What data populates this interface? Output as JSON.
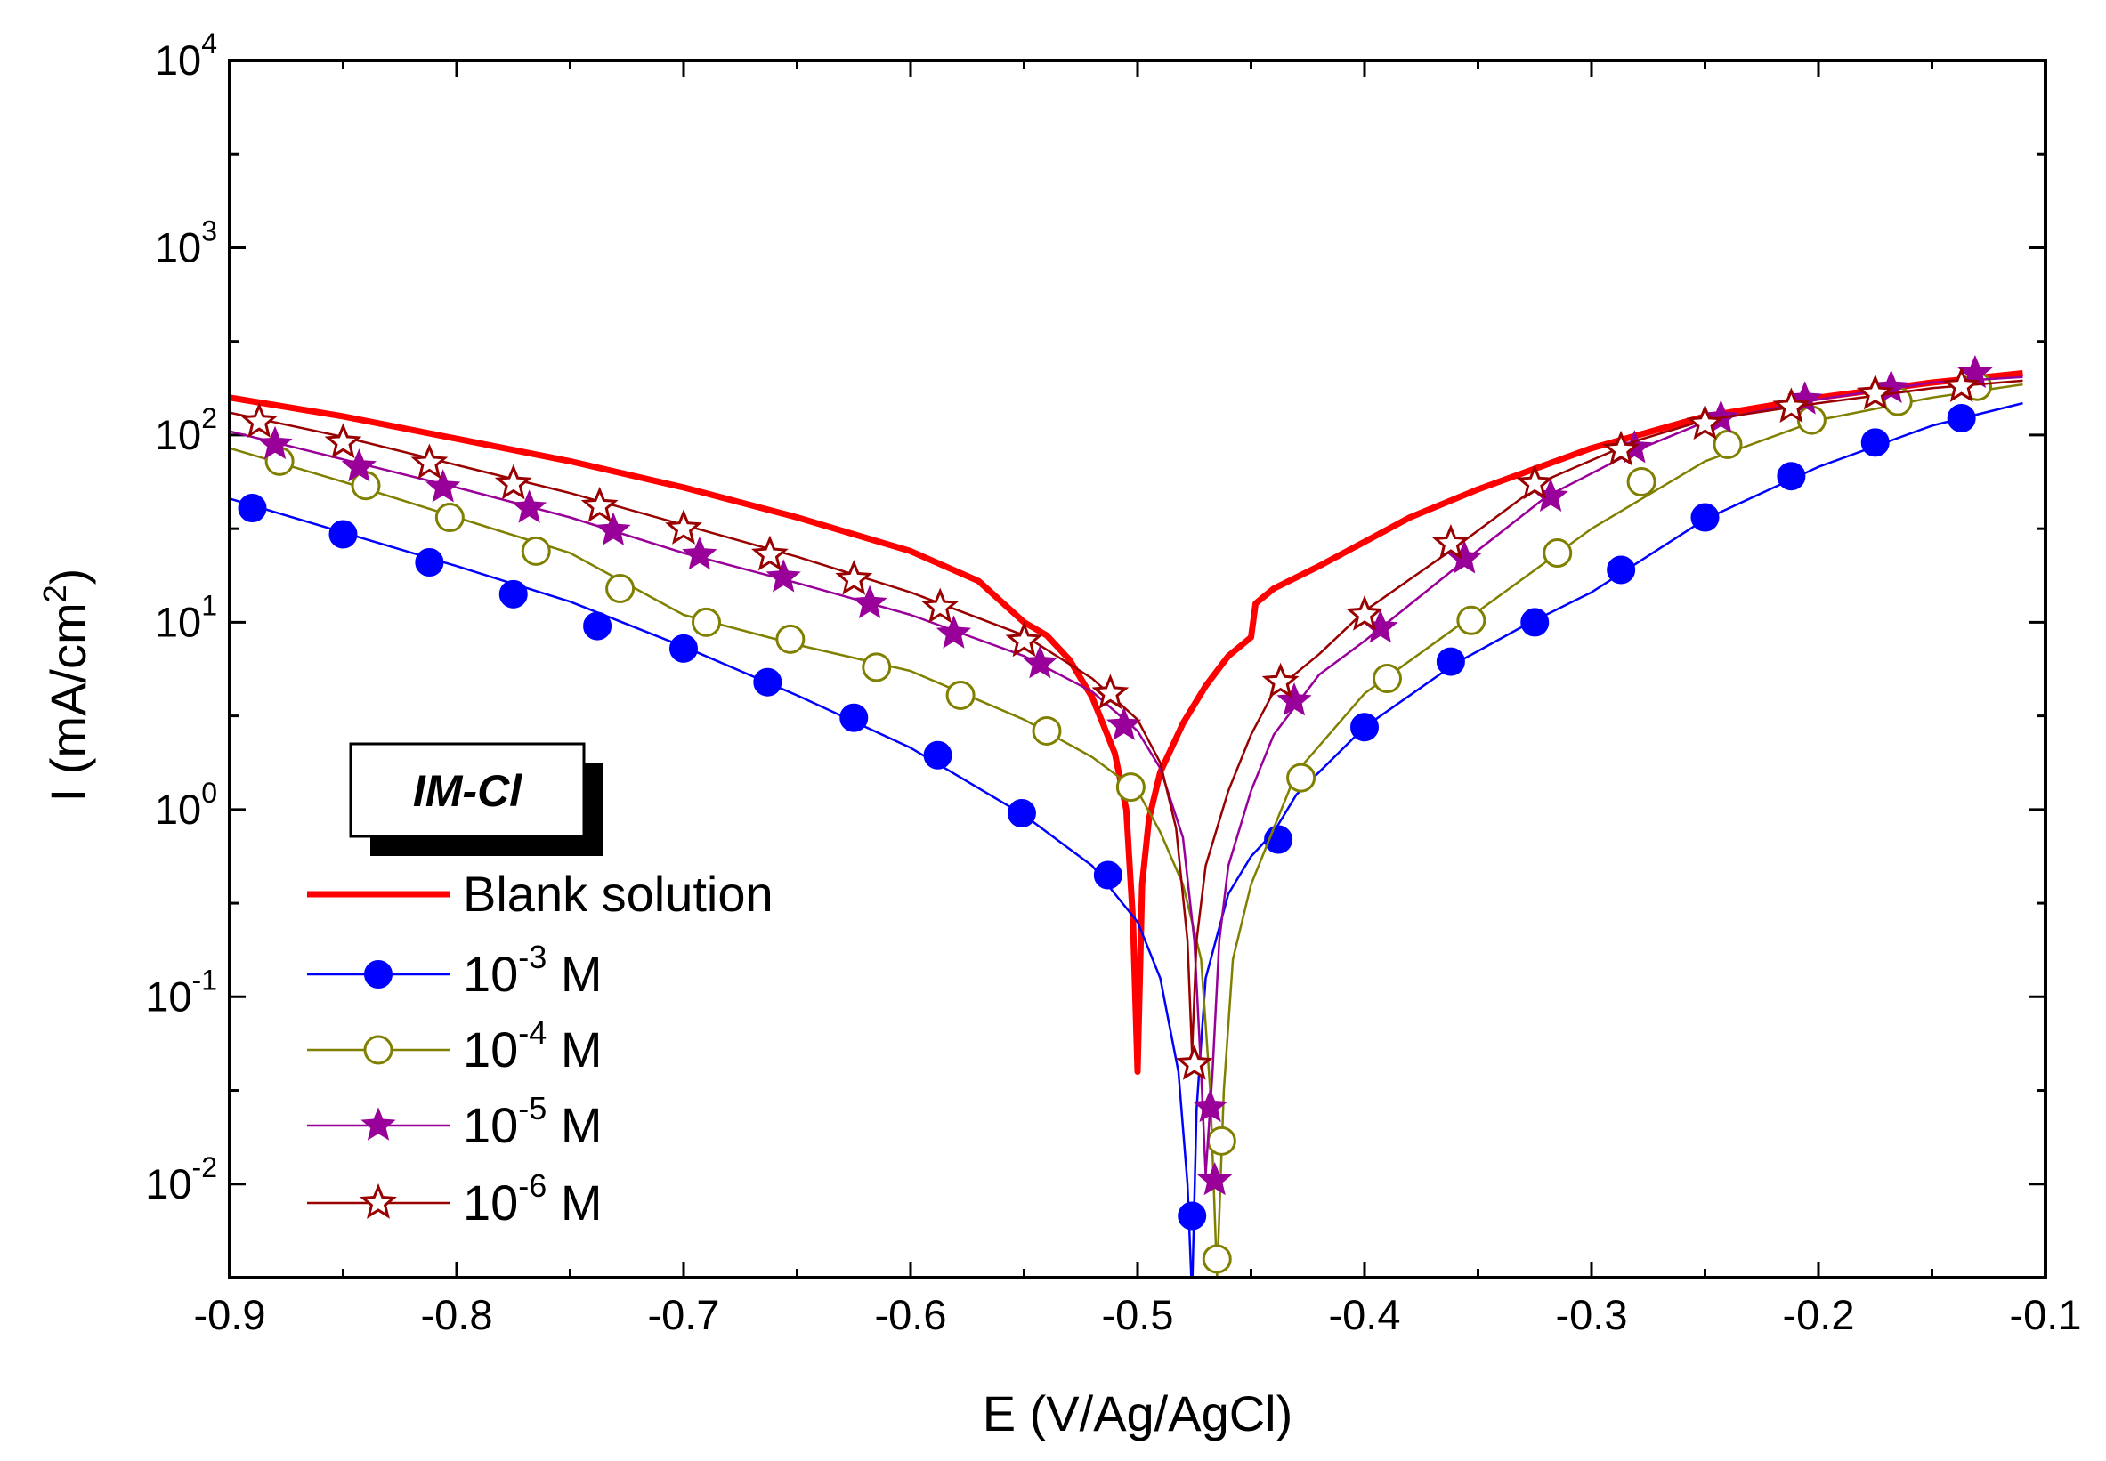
{
  "chart_data": {
    "type": "line",
    "xlabel": "E (V/Ag/AgCl)",
    "ylabel": {
      "base": "I (mA/cm",
      "sup": "2",
      "end": ")"
    },
    "xlim": [
      -0.9,
      -0.1
    ],
    "ylim_log10": [
      -2.5,
      4
    ],
    "yscale": "log",
    "x_ticks": [
      -0.9,
      -0.8,
      -0.7,
      -0.6,
      -0.5,
      -0.4,
      -0.3,
      -0.2,
      -0.1
    ],
    "x_tick_labels": [
      "-0.9",
      "-0.8",
      "-0.7",
      "-0.6",
      "-0.5",
      "-0.4",
      "-0.3",
      "-0.2",
      "-0.1"
    ],
    "y_ticks": [
      {
        "value": 4,
        "base": "10",
        "exp": "4"
      },
      {
        "value": 3,
        "base": "10",
        "exp": "3"
      },
      {
        "value": 2,
        "base": "10",
        "exp": "2"
      },
      {
        "value": 1,
        "base": "10",
        "exp": "1"
      },
      {
        "value": 0,
        "base": "10",
        "exp": "0"
      },
      {
        "value": -1,
        "base": "10",
        "exp": "-1"
      },
      {
        "value": -2,
        "base": "10",
        "exp": "-2"
      }
    ],
    "inset_label": "IM-Cl",
    "series": [
      {
        "name": "Blank solution",
        "color": "#ff0000",
        "marker": "none",
        "points": [
          [
            -0.9,
            2.2
          ],
          [
            -0.85,
            2.1
          ],
          [
            -0.8,
            1.98
          ],
          [
            -0.75,
            1.86
          ],
          [
            -0.7,
            1.72
          ],
          [
            -0.65,
            1.56
          ],
          [
            -0.6,
            1.38
          ],
          [
            -0.57,
            1.22
          ],
          [
            -0.55,
            1.0
          ],
          [
            -0.54,
            0.93
          ],
          [
            -0.53,
            0.8
          ],
          [
            -0.52,
            0.6
          ],
          [
            -0.51,
            0.3
          ],
          [
            -0.505,
            0.0
          ],
          [
            -0.502,
            -0.6
          ],
          [
            -0.5,
            -1.4
          ],
          [
            -0.498,
            -0.4
          ],
          [
            -0.495,
            -0.05
          ],
          [
            -0.49,
            0.2
          ],
          [
            -0.48,
            0.46
          ],
          [
            -0.47,
            0.66
          ],
          [
            -0.46,
            0.82
          ],
          [
            -0.45,
            0.92
          ],
          [
            -0.448,
            1.1
          ],
          [
            -0.44,
            1.18
          ],
          [
            -0.42,
            1.3
          ],
          [
            -0.4,
            1.43
          ],
          [
            -0.38,
            1.56
          ],
          [
            -0.35,
            1.71
          ],
          [
            -0.3,
            1.93
          ],
          [
            -0.25,
            2.1
          ],
          [
            -0.2,
            2.2
          ],
          [
            -0.15,
            2.28
          ],
          [
            -0.11,
            2.33
          ]
        ]
      },
      {
        "name": "10",
        "exp": "-3",
        "unit": "M",
        "color": "#0000ff",
        "marker": "filled-circle",
        "points": [
          [
            -0.9,
            1.66
          ],
          [
            -0.85,
            1.48
          ],
          [
            -0.8,
            1.3
          ],
          [
            -0.75,
            1.11
          ],
          [
            -0.7,
            0.87
          ],
          [
            -0.65,
            0.61
          ],
          [
            -0.6,
            0.33
          ],
          [
            -0.55,
            -0.03
          ],
          [
            -0.52,
            -0.3
          ],
          [
            -0.5,
            -0.6
          ],
          [
            -0.49,
            -0.9
          ],
          [
            -0.482,
            -1.4
          ],
          [
            -0.478,
            -2.0
          ],
          [
            -0.476,
            -2.6
          ],
          [
            -0.474,
            -1.6
          ],
          [
            -0.47,
            -0.9
          ],
          [
            -0.46,
            -0.45
          ],
          [
            -0.45,
            -0.25
          ],
          [
            -0.44,
            -0.12
          ],
          [
            -0.43,
            0.08
          ],
          [
            -0.4,
            0.44
          ],
          [
            -0.36,
            0.78
          ],
          [
            -0.33,
            0.98
          ],
          [
            -0.3,
            1.16
          ],
          [
            -0.25,
            1.55
          ],
          [
            -0.2,
            1.83
          ],
          [
            -0.15,
            2.05
          ],
          [
            -0.11,
            2.17
          ]
        ],
        "markers": [
          [
            -0.89,
            1.61
          ],
          [
            -0.85,
            1.47
          ],
          [
            -0.812,
            1.32
          ],
          [
            -0.775,
            1.15
          ],
          [
            -0.738,
            0.98
          ],
          [
            -0.7,
            0.86
          ],
          [
            -0.663,
            0.68
          ],
          [
            -0.625,
            0.49
          ],
          [
            -0.588,
            0.29
          ],
          [
            -0.551,
            -0.02
          ],
          [
            -0.513,
            -0.35
          ],
          [
            -0.476,
            -2.17
          ],
          [
            -0.438,
            -0.16
          ],
          [
            -0.4,
            0.44
          ],
          [
            -0.362,
            0.79
          ],
          [
            -0.325,
            1.0
          ],
          [
            -0.287,
            1.28
          ],
          [
            -0.25,
            1.56
          ],
          [
            -0.212,
            1.78
          ],
          [
            -0.175,
            1.96
          ],
          [
            -0.137,
            2.09
          ]
        ]
      },
      {
        "name": "10",
        "exp": "-4",
        "unit": "M",
        "color": "#808000",
        "marker": "open-circle",
        "points": [
          [
            -0.9,
            1.93
          ],
          [
            -0.85,
            1.75
          ],
          [
            -0.8,
            1.56
          ],
          [
            -0.75,
            1.37
          ],
          [
            -0.7,
            1.04
          ],
          [
            -0.65,
            0.88
          ],
          [
            -0.6,
            0.74
          ],
          [
            -0.55,
            0.48
          ],
          [
            -0.52,
            0.28
          ],
          [
            -0.5,
            0.1
          ],
          [
            -0.49,
            -0.12
          ],
          [
            -0.48,
            -0.4
          ],
          [
            -0.472,
            -0.8
          ],
          [
            -0.468,
            -1.5
          ],
          [
            -0.465,
            -2.5
          ],
          [
            -0.462,
            -1.5
          ],
          [
            -0.458,
            -0.8
          ],
          [
            -0.45,
            -0.4
          ],
          [
            -0.44,
            -0.1
          ],
          [
            -0.43,
            0.2
          ],
          [
            -0.4,
            0.62
          ],
          [
            -0.36,
            0.97
          ],
          [
            -0.3,
            1.5
          ],
          [
            -0.25,
            1.86
          ],
          [
            -0.2,
            2.08
          ],
          [
            -0.15,
            2.2
          ],
          [
            -0.11,
            2.27
          ]
        ],
        "markers": [
          [
            -0.878,
            1.86
          ],
          [
            -0.84,
            1.73
          ],
          [
            -0.803,
            1.56
          ],
          [
            -0.765,
            1.38
          ],
          [
            -0.728,
            1.18
          ],
          [
            -0.69,
            1.0
          ],
          [
            -0.653,
            0.91
          ],
          [
            -0.615,
            0.76
          ],
          [
            -0.578,
            0.61
          ],
          [
            -0.54,
            0.42
          ],
          [
            -0.503,
            0.12
          ],
          [
            -0.465,
            -2.4
          ],
          [
            -0.463,
            -1.77
          ],
          [
            -0.428,
            0.17
          ],
          [
            -0.39,
            0.7
          ],
          [
            -0.353,
            1.01
          ],
          [
            -0.315,
            1.37
          ],
          [
            -0.278,
            1.75
          ],
          [
            -0.24,
            1.95
          ],
          [
            -0.203,
            2.08
          ],
          [
            -0.165,
            2.18
          ],
          [
            -0.13,
            2.26
          ]
        ]
      },
      {
        "name": "10",
        "exp": "-5",
        "unit": "M",
        "color": "#990099",
        "marker": "filled-star",
        "points": [
          [
            -0.9,
            2.02
          ],
          [
            -0.85,
            1.87
          ],
          [
            -0.8,
            1.72
          ],
          [
            -0.75,
            1.56
          ],
          [
            -0.7,
            1.37
          ],
          [
            -0.65,
            1.21
          ],
          [
            -0.6,
            1.04
          ],
          [
            -0.55,
            0.82
          ],
          [
            -0.52,
            0.63
          ],
          [
            -0.5,
            0.42
          ],
          [
            -0.49,
            0.22
          ],
          [
            -0.48,
            -0.15
          ],
          [
            -0.475,
            -0.7
          ],
          [
            -0.472,
            -1.4
          ],
          [
            -0.47,
            -1.95
          ],
          [
            -0.467,
            -1.4
          ],
          [
            -0.464,
            -0.7
          ],
          [
            -0.46,
            -0.3
          ],
          [
            -0.45,
            0.1
          ],
          [
            -0.44,
            0.4
          ],
          [
            -0.42,
            0.72
          ],
          [
            -0.4,
            0.9
          ],
          [
            -0.36,
            1.29
          ],
          [
            -0.32,
            1.67
          ],
          [
            -0.28,
            1.92
          ],
          [
            -0.25,
            2.07
          ],
          [
            -0.2,
            2.19
          ],
          [
            -0.15,
            2.28
          ],
          [
            -0.11,
            2.31
          ]
        ],
        "markers": [
          [
            -0.88,
            1.95
          ],
          [
            -0.843,
            1.83
          ],
          [
            -0.806,
            1.72
          ],
          [
            -0.768,
            1.61
          ],
          [
            -0.731,
            1.49
          ],
          [
            -0.693,
            1.36
          ],
          [
            -0.656,
            1.24
          ],
          [
            -0.618,
            1.1
          ],
          [
            -0.581,
            0.94
          ],
          [
            -0.543,
            0.78
          ],
          [
            -0.506,
            0.45
          ],
          [
            -0.468,
            -1.59
          ],
          [
            -0.466,
            -1.98
          ],
          [
            -0.431,
            0.58
          ],
          [
            -0.393,
            0.97
          ],
          [
            -0.356,
            1.34
          ],
          [
            -0.318,
            1.67
          ],
          [
            -0.281,
            1.93
          ],
          [
            -0.243,
            2.09
          ],
          [
            -0.206,
            2.19
          ],
          [
            -0.168,
            2.25
          ],
          [
            -0.131,
            2.33
          ]
        ]
      },
      {
        "name": "10",
        "exp": "-6",
        "unit": "M",
        "color": "#990000",
        "marker": "open-star",
        "points": [
          [
            -0.9,
            2.12
          ],
          [
            -0.85,
            1.99
          ],
          [
            -0.8,
            1.84
          ],
          [
            -0.75,
            1.69
          ],
          [
            -0.7,
            1.52
          ],
          [
            -0.65,
            1.35
          ],
          [
            -0.6,
            1.16
          ],
          [
            -0.55,
            0.93
          ],
          [
            -0.52,
            0.7
          ],
          [
            -0.5,
            0.48
          ],
          [
            -0.49,
            0.25
          ],
          [
            -0.483,
            -0.1
          ],
          [
            -0.478,
            -0.7
          ],
          [
            -0.476,
            -1.3
          ],
          [
            -0.474,
            -0.7
          ],
          [
            -0.47,
            -0.3
          ],
          [
            -0.46,
            0.1
          ],
          [
            -0.45,
            0.4
          ],
          [
            -0.44,
            0.63
          ],
          [
            -0.42,
            0.83
          ],
          [
            -0.4,
            1.06
          ],
          [
            -0.36,
            1.4
          ],
          [
            -0.32,
            1.76
          ],
          [
            -0.28,
            1.97
          ],
          [
            -0.25,
            2.08
          ],
          [
            -0.2,
            2.17
          ],
          [
            -0.15,
            2.25
          ],
          [
            -0.11,
            2.29
          ]
        ],
        "markers": [
          [
            -0.887,
            2.07
          ],
          [
            -0.85,
            1.96
          ],
          [
            -0.812,
            1.85
          ],
          [
            -0.775,
            1.74
          ],
          [
            -0.737,
            1.62
          ],
          [
            -0.7,
            1.5
          ],
          [
            -0.662,
            1.36
          ],
          [
            -0.625,
            1.23
          ],
          [
            -0.587,
            1.08
          ],
          [
            -0.55,
            0.9
          ],
          [
            -0.512,
            0.62
          ],
          [
            -0.475,
            -1.36
          ],
          [
            -0.437,
            0.68
          ],
          [
            -0.4,
            1.04
          ],
          [
            -0.362,
            1.42
          ],
          [
            -0.325,
            1.74
          ],
          [
            -0.287,
            1.92
          ],
          [
            -0.25,
            2.06
          ],
          [
            -0.212,
            2.15
          ],
          [
            -0.175,
            2.22
          ],
          [
            -0.137,
            2.26
          ]
        ]
      }
    ],
    "legend_position": "lower-left"
  }
}
